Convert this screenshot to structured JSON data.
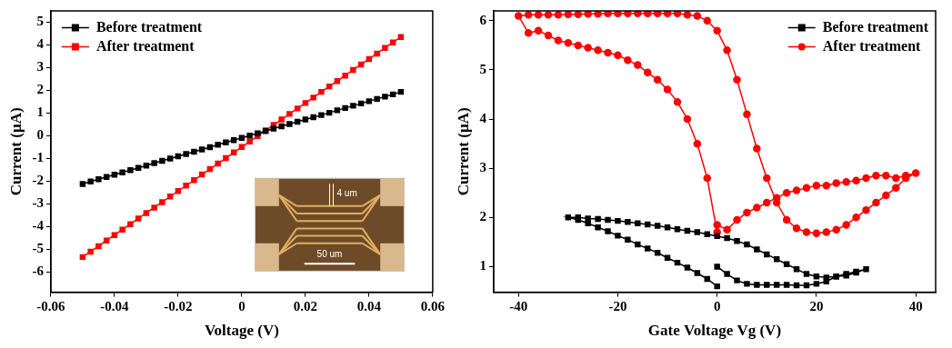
{
  "chart_data": [
    {
      "type": "line",
      "x_label": "Voltage (V)",
      "y_label": "Current (µA)",
      "xlim": [
        -0.06,
        0.06
      ],
      "xticks": [
        -0.06,
        -0.04,
        -0.02,
        0,
        0.02,
        0.04,
        0.06
      ],
      "ylim": [
        -6.9,
        5.5
      ],
      "yticks": [
        -6,
        -5,
        -4,
        -3,
        -2,
        -1,
        0,
        1,
        2,
        3,
        4,
        5
      ],
      "grid": false,
      "legend": "upper left",
      "annotations": [
        "4 um",
        "50 um"
      ],
      "x": [
        -0.05,
        -0.0475,
        -0.045,
        -0.0425,
        -0.04,
        -0.0375,
        -0.035,
        -0.0325,
        -0.03,
        -0.0275,
        -0.025,
        -0.0225,
        -0.02,
        -0.0175,
        -0.015,
        -0.0125,
        -0.01,
        -0.0075,
        -0.005,
        -0.0025,
        0,
        0.0025,
        0.005,
        0.0075,
        0.01,
        0.0125,
        0.015,
        0.0175,
        0.02,
        0.0225,
        0.025,
        0.0275,
        0.03,
        0.0325,
        0.035,
        0.0375,
        0.04,
        0.0425,
        0.045,
        0.0475,
        0.05
      ],
      "series": [
        {
          "name": "Before treatment",
          "color": "#000000",
          "marker": "square",
          "line_style": "solid",
          "values": [
            -2.13,
            -2.02,
            -1.92,
            -1.82,
            -1.72,
            -1.62,
            -1.52,
            -1.42,
            -1.32,
            -1.21,
            -1.11,
            -1.01,
            -0.91,
            -0.81,
            -0.71,
            -0.61,
            -0.51,
            -0.4,
            -0.3,
            -0.2,
            -0.1,
            0,
            0.1,
            0.2,
            0.31,
            0.41,
            0.51,
            0.61,
            0.71,
            0.81,
            0.91,
            1.01,
            1.12,
            1.22,
            1.32,
            1.42,
            1.52,
            1.62,
            1.72,
            1.82,
            1.93
          ]
        },
        {
          "name": "After treatment",
          "color": "#ff0000",
          "marker": "square",
          "line_style": "solid",
          "values": [
            -5.35,
            -5.11,
            -4.87,
            -4.62,
            -4.38,
            -4.14,
            -3.9,
            -3.65,
            -3.41,
            -3.17,
            -2.93,
            -2.68,
            -2.44,
            -2.2,
            -1.96,
            -1.71,
            -1.47,
            -1.23,
            -0.99,
            -0.74,
            -0.5,
            -0.26,
            -0.02,
            0.23,
            0.47,
            0.71,
            0.96,
            1.2,
            1.44,
            1.68,
            1.93,
            2.17,
            2.41,
            2.65,
            2.9,
            3.14,
            3.38,
            3.62,
            3.87,
            4.11,
            4.35
          ]
        }
      ]
    },
    {
      "type": "line",
      "x_label": "Gate Voltage Vg (V)",
      "y_label": "Current (µA)",
      "xlim": [
        -45,
        44
      ],
      "xticks": [
        -40,
        -20,
        0,
        20,
        40
      ],
      "ylim": [
        0.48,
        6.2
      ],
      "yticks": [
        1,
        2,
        3,
        4,
        5,
        6
      ],
      "grid": false,
      "legend": "upper right",
      "series": [
        {
          "name": "Before treatment",
          "color": "#000000",
          "marker": "square",
          "line_style": "solid",
          "x": [
            0,
            2,
            4,
            6,
            8,
            10,
            12,
            14,
            16,
            18,
            20,
            22,
            24,
            26,
            28,
            30,
            28,
            26,
            24,
            22,
            20,
            18,
            16,
            14,
            12,
            10,
            8,
            6,
            4,
            2,
            0,
            -2,
            -4,
            -6,
            -8,
            -10,
            -12,
            -14,
            -16,
            -18,
            -20,
            -22,
            -24,
            -26,
            -28,
            -30,
            -28,
            -26,
            -24,
            -22,
            -20,
            -18,
            -16,
            -14,
            -12,
            -10,
            -8,
            -6,
            -4,
            -2,
            0
          ],
          "values": [
            1.0,
            0.85,
            0.72,
            0.65,
            0.63,
            0.63,
            0.63,
            0.63,
            0.62,
            0.62,
            0.65,
            0.7,
            0.8,
            0.85,
            0.9,
            0.95,
            0.88,
            0.82,
            0.8,
            0.78,
            0.8,
            0.85,
            0.95,
            1.05,
            1.15,
            1.25,
            1.35,
            1.45,
            1.52,
            1.58,
            1.62,
            1.66,
            1.7,
            1.73,
            1.76,
            1.8,
            1.83,
            1.86,
            1.88,
            1.91,
            1.93,
            1.95,
            1.97,
            1.98,
            2.0,
            2.0,
            1.95,
            1.88,
            1.8,
            1.72,
            1.63,
            1.55,
            1.45,
            1.37,
            1.28,
            1.18,
            1.08,
            0.98,
            0.87,
            0.75,
            0.6
          ]
        },
        {
          "name": "After treatment",
          "color": "#ff0000",
          "marker": "circle",
          "line_style": "solid",
          "x": [
            0,
            2,
            4,
            6,
            8,
            10,
            12,
            14,
            16,
            18,
            20,
            22,
            24,
            26,
            28,
            30,
            32,
            34,
            36,
            38,
            40,
            38,
            36,
            34,
            32,
            30,
            28,
            26,
            24,
            22,
            20,
            18,
            16,
            14,
            12,
            10,
            8,
            6,
            4,
            2,
            0,
            -2,
            -4,
            -6,
            -8,
            -10,
            -12,
            -14,
            -16,
            -18,
            -20,
            -22,
            -24,
            -26,
            -28,
            -30,
            -32,
            -34,
            -36,
            -38,
            -40,
            -38,
            -36,
            -34,
            -32,
            -30,
            -28,
            -26,
            -24,
            -22,
            -20,
            -18,
            -16,
            -14,
            -12,
            -10,
            -8,
            -6,
            -4,
            -2,
            0
          ],
          "values": [
            1.85,
            1.75,
            1.95,
            2.1,
            2.2,
            2.3,
            2.4,
            2.5,
            2.55,
            2.6,
            2.65,
            2.65,
            2.7,
            2.72,
            2.75,
            2.8,
            2.85,
            2.85,
            2.8,
            2.85,
            2.9,
            2.8,
            2.6,
            2.45,
            2.3,
            2.15,
            2.0,
            1.85,
            1.75,
            1.7,
            1.68,
            1.7,
            1.78,
            1.95,
            2.3,
            2.8,
            3.4,
            4.1,
            4.8,
            5.4,
            5.8,
            6.0,
            6.1,
            6.12,
            6.15,
            6.15,
            6.15,
            6.15,
            6.15,
            6.15,
            6.15,
            6.15,
            6.14,
            6.14,
            6.13,
            6.13,
            6.12,
            6.12,
            6.12,
            6.12,
            6.1,
            5.75,
            5.8,
            5.7,
            5.6,
            5.55,
            5.5,
            5.45,
            5.4,
            5.35,
            5.3,
            5.2,
            5.1,
            4.95,
            4.8,
            4.6,
            4.35,
            4.0,
            3.5,
            2.8,
            1.7
          ]
        }
      ]
    }
  ]
}
